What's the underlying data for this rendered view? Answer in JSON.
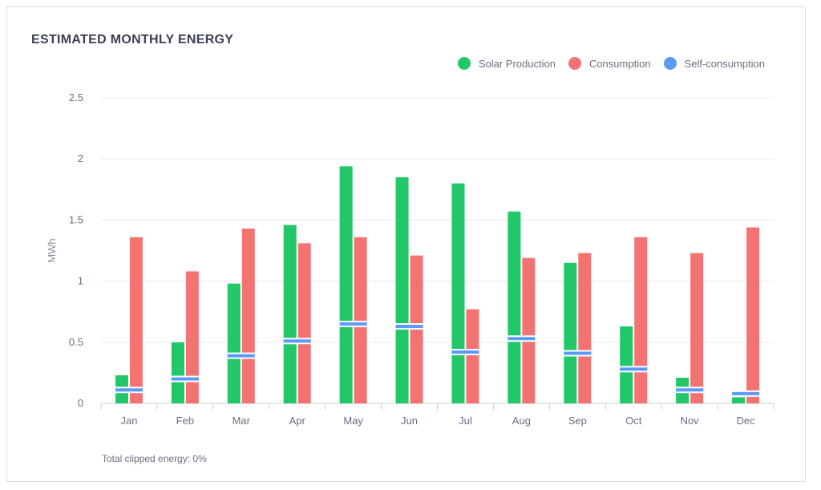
{
  "header": {
    "title": "ESTIMATED MONTHLY ENERGY"
  },
  "legend": [
    {
      "label": "Solar Production",
      "color": "#22c768"
    },
    {
      "label": "Consumption",
      "color": "#f37373"
    },
    {
      "label": "Self-consumption",
      "color": "#5b9af7"
    }
  ],
  "footer": {
    "note": "Total clipped energy: 0%"
  },
  "chart_data": {
    "type": "bar",
    "title": "ESTIMATED MONTHLY ENERGY",
    "xlabel": "",
    "ylabel": "MWh",
    "ylim": [
      0,
      2.5
    ],
    "yticks": [
      "0",
      "0.5",
      "1",
      "1.5",
      "2",
      "2.5"
    ],
    "grid": true,
    "legend_position": "top-right",
    "categories": [
      "Jan",
      "Feb",
      "Mar",
      "Apr",
      "May",
      "Jun",
      "Jul",
      "Aug",
      "Sep",
      "Oct",
      "Nov",
      "Dec"
    ],
    "series": [
      {
        "name": "Solar Production",
        "color": "#22c768",
        "values": [
          0.23,
          0.5,
          0.98,
          1.46,
          1.94,
          1.85,
          1.8,
          1.57,
          1.15,
          0.63,
          0.21,
          0.05
        ]
      },
      {
        "name": "Consumption",
        "color": "#f37373",
        "values": [
          1.36,
          1.08,
          1.43,
          1.31,
          1.36,
          1.21,
          0.77,
          1.19,
          1.23,
          1.36,
          1.23,
          1.44
        ]
      },
      {
        "name": "Self-consumption",
        "color": "#5b9af7",
        "values": [
          0.11,
          0.2,
          0.39,
          0.51,
          0.65,
          0.63,
          0.42,
          0.53,
          0.41,
          0.28,
          0.11,
          0.08
        ]
      }
    ]
  }
}
